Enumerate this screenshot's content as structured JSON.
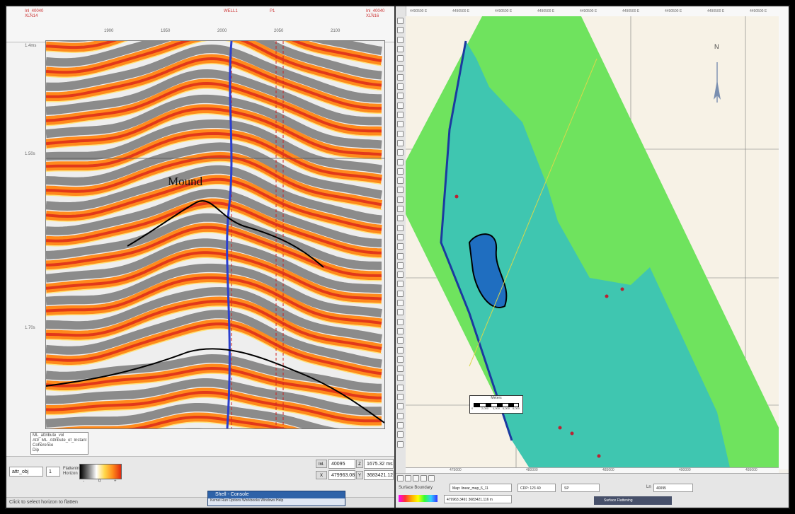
{
  "left": {
    "top_labels": {
      "left_start": "Inl_40040",
      "left_start2": "XLN14",
      "well_a": "WELL1",
      "well_b": "P1",
      "right_end": "Inl_40040",
      "right_end2": "XLN16"
    },
    "x_ticks": [
      "1900",
      "1950",
      "2000",
      "2050",
      "2100"
    ],
    "y_ticks": [
      "1.4ms",
      "1.50s",
      "1.70s"
    ],
    "annotation": "Mound",
    "legend_text": [
      "ML_attribute_vol",
      "Attr_ML_Attribute_of_InstantaneousPhase",
      "Coherence",
      "Dip"
    ],
    "bottom": {
      "name_field": "attr_obj",
      "num_field": "1",
      "colorbar_label": "Flattening Horizon",
      "colorbar_ticks": [
        "-",
        "0",
        "+"
      ],
      "inline_label": "Inl.",
      "inline_value": "40095",
      "time_label": "Z",
      "time_value": "1675.32 ms",
      "x_label": "X",
      "x_value": "479963.08",
      "y_label": "Y",
      "y_value": "3683421.12"
    },
    "status_text": "Click to select horizon to flatten"
  },
  "right": {
    "north_label": "N",
    "top_ticks": [
      "4490500 E",
      "4490500 E",
      "4490500 E",
      "4490500 E",
      "4490500 E",
      "4490500 E",
      "4490500 E",
      "4490500 E",
      "4490500 E"
    ],
    "bottom_ticks": [
      "475000",
      "480000",
      "485000",
      "490000",
      "495000"
    ],
    "scalebar_title": "Meters",
    "scalebar_ticks": [
      "0",
      "2,000",
      "4,000",
      "6,000",
      "8,000"
    ],
    "status": {
      "label_surface": "Surface Boundary",
      "map_label": "Map: linear_map_6_11",
      "cdp_label": "CDP: 123 40",
      "sp_label": "SP",
      "ln_label": "Ln",
      "ln_value": "40095",
      "xy_value": "479963.3491 3683421.116 m",
      "tab_label": "Surface Flattening"
    }
  },
  "popup": {
    "title": "Shell - Console",
    "body": "Kernel  Run  Options  Workbooks  Windows  Help"
  }
}
